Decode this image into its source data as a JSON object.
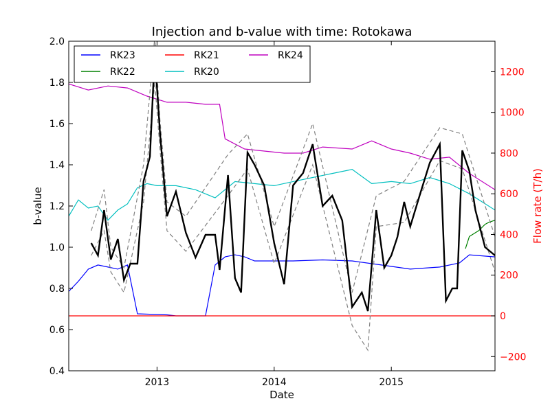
{
  "chart_data": {
    "type": "line",
    "title": "Injection and b-value with time: Rotokawa",
    "xlabel": "Date",
    "ylabel_left": "b-value",
    "ylabel_right": "Flow rate (T/h)",
    "xlim": [
      "2012-04-01",
      "2015-11-20"
    ],
    "ylim_left": [
      0.4,
      2.0
    ],
    "ylim_right": [
      -270,
      1350
    ],
    "x_ticks": [
      "2013-01-01",
      "2014-01-01",
      "2015-01-01"
    ],
    "x_tick_labels": [
      "2013",
      "2014",
      "2015"
    ],
    "y_left_ticks": [
      0.4,
      0.6,
      0.8,
      1.0,
      1.2,
      1.4,
      1.6,
      1.8,
      2.0
    ],
    "y_left_tick_labels": [
      "0.4",
      "0.6",
      "0.8",
      "1.0",
      "1.2",
      "1.4",
      "1.6",
      "1.8",
      "2.0"
    ],
    "y_right_ticks": [
      -200,
      0,
      200,
      400,
      600,
      800,
      1000,
      1200
    ],
    "y_right_tick_labels": [
      "−200",
      "0",
      "200",
      "400",
      "600",
      "800",
      "1000",
      "1200"
    ],
    "right_axis_color": "#ff0000",
    "legend": {
      "placement": "top-left",
      "columns": 3,
      "entries": [
        "RK23",
        "RK22",
        "RK21",
        "RK20",
        "RK24"
      ]
    },
    "flow_series": [
      {
        "name": "RK23",
        "color": "#0000ff",
        "axis": "right",
        "points": [
          [
            "2012-04-01",
            120
          ],
          [
            "2012-05-01",
            170
          ],
          [
            "2012-06-01",
            230
          ],
          [
            "2012-07-01",
            250
          ],
          [
            "2012-08-01",
            240
          ],
          [
            "2012-09-01",
            230
          ],
          [
            "2012-10-01",
            250
          ],
          [
            "2012-11-01",
            10
          ],
          [
            "2013-02-01",
            5
          ],
          [
            "2013-03-01",
            0
          ],
          [
            "2013-06-01",
            0
          ],
          [
            "2013-07-01",
            250
          ],
          [
            "2013-08-01",
            290
          ],
          [
            "2013-09-01",
            300
          ],
          [
            "2013-10-01",
            290
          ],
          [
            "2013-11-01",
            270
          ],
          [
            "2014-01-01",
            270
          ],
          [
            "2014-03-01",
            270
          ],
          [
            "2014-06-01",
            275
          ],
          [
            "2014-09-01",
            270
          ],
          [
            "2014-12-01",
            250
          ],
          [
            "2015-03-01",
            230
          ],
          [
            "2015-06-01",
            240
          ],
          [
            "2015-08-01",
            260
          ],
          [
            "2015-09-01",
            300
          ],
          [
            "2015-11-20",
            290
          ]
        ]
      },
      {
        "name": "RK22",
        "color": "#008000",
        "axis": "right",
        "points": [
          [
            "2015-08-20",
            330
          ],
          [
            "2015-09-01",
            390
          ],
          [
            "2015-10-01",
            420
          ],
          [
            "2015-10-20",
            450
          ],
          [
            "2015-11-01",
            460
          ],
          [
            "2015-11-20",
            470
          ]
        ]
      },
      {
        "name": "RK21",
        "color": "#ff0000",
        "axis": "right",
        "points": [
          [
            "2012-04-01",
            0
          ],
          [
            "2015-11-20",
            0
          ]
        ]
      },
      {
        "name": "RK20",
        "color": "#00bfbf",
        "axis": "right",
        "points": [
          [
            "2012-04-01",
            490
          ],
          [
            "2012-05-01",
            570
          ],
          [
            "2012-06-01",
            530
          ],
          [
            "2012-07-01",
            540
          ],
          [
            "2012-08-01",
            470
          ],
          [
            "2012-09-01",
            520
          ],
          [
            "2012-10-01",
            550
          ],
          [
            "2012-11-01",
            630
          ],
          [
            "2012-12-01",
            650
          ],
          [
            "2013-01-01",
            640
          ],
          [
            "2013-03-01",
            640
          ],
          [
            "2013-05-01",
            620
          ],
          [
            "2013-07-01",
            580
          ],
          [
            "2013-09-01",
            660
          ],
          [
            "2013-11-01",
            650
          ],
          [
            "2014-01-01",
            640
          ],
          [
            "2014-03-01",
            660
          ],
          [
            "2014-05-01",
            680
          ],
          [
            "2014-07-01",
            700
          ],
          [
            "2014-09-01",
            720
          ],
          [
            "2014-11-01",
            650
          ],
          [
            "2015-01-01",
            660
          ],
          [
            "2015-03-01",
            650
          ],
          [
            "2015-05-01",
            680
          ],
          [
            "2015-07-01",
            650
          ],
          [
            "2015-09-01",
            600
          ],
          [
            "2015-11-20",
            520
          ]
        ]
      },
      {
        "name": "RK24",
        "color": "#bf00bf",
        "axis": "right",
        "points": [
          [
            "2012-04-01",
            1140
          ],
          [
            "2012-06-01",
            1110
          ],
          [
            "2012-08-01",
            1130
          ],
          [
            "2012-10-01",
            1120
          ],
          [
            "2012-12-01",
            1080
          ],
          [
            "2013-02-01",
            1050
          ],
          [
            "2013-04-01",
            1050
          ],
          [
            "2013-06-01",
            1040
          ],
          [
            "2013-07-15",
            1040
          ],
          [
            "2013-08-01",
            870
          ],
          [
            "2013-10-01",
            820
          ],
          [
            "2013-12-01",
            810
          ],
          [
            "2014-02-01",
            800
          ],
          [
            "2014-04-01",
            800
          ],
          [
            "2014-06-01",
            830
          ],
          [
            "2014-09-01",
            820
          ],
          [
            "2014-11-01",
            860
          ],
          [
            "2015-01-01",
            820
          ],
          [
            "2015-03-01",
            800
          ],
          [
            "2015-05-01",
            770
          ],
          [
            "2015-07-01",
            780
          ],
          [
            "2015-09-01",
            700
          ],
          [
            "2015-11-20",
            620
          ]
        ]
      }
    ],
    "bvalue_series": {
      "color": "#000000",
      "axis": "left",
      "points": [
        [
          "2012-06-10",
          1.02
        ],
        [
          "2012-07-01",
          0.96
        ],
        [
          "2012-07-20",
          1.18
        ],
        [
          "2012-08-10",
          0.94
        ],
        [
          "2012-09-01",
          1.04
        ],
        [
          "2012-09-20",
          0.84
        ],
        [
          "2012-10-10",
          0.92
        ],
        [
          "2012-11-01",
          0.92
        ],
        [
          "2012-11-20",
          1.32
        ],
        [
          "2012-12-10",
          1.44
        ],
        [
          "2012-12-25",
          1.94
        ],
        [
          "2013-01-10",
          1.56
        ],
        [
          "2013-02-01",
          1.15
        ],
        [
          "2013-03-01",
          1.27
        ],
        [
          "2013-04-01",
          1.07
        ],
        [
          "2013-05-01",
          0.95
        ],
        [
          "2013-06-01",
          1.06
        ],
        [
          "2013-07-01",
          1.06
        ],
        [
          "2013-07-15",
          0.89
        ],
        [
          "2013-08-10",
          1.35
        ],
        [
          "2013-09-01",
          0.85
        ],
        [
          "2013-09-20",
          0.78
        ],
        [
          "2013-10-10",
          1.46
        ],
        [
          "2013-11-01",
          1.4
        ],
        [
          "2013-12-01",
          1.3
        ],
        [
          "2014-01-01",
          1.02
        ],
        [
          "2014-02-01",
          0.82
        ],
        [
          "2014-03-01",
          1.3
        ],
        [
          "2014-04-01",
          1.36
        ],
        [
          "2014-05-01",
          1.5
        ],
        [
          "2014-06-01",
          1.2
        ],
        [
          "2014-07-01",
          1.25
        ],
        [
          "2014-08-01",
          1.13
        ],
        [
          "2014-09-01",
          0.71
        ],
        [
          "2014-10-01",
          0.78
        ],
        [
          "2014-10-20",
          0.69
        ],
        [
          "2014-11-15",
          1.18
        ],
        [
          "2014-12-10",
          0.9
        ],
        [
          "2015-01-01",
          0.96
        ],
        [
          "2015-01-20",
          1.05
        ],
        [
          "2015-02-10",
          1.22
        ],
        [
          "2015-03-01",
          1.1
        ],
        [
          "2015-04-01",
          1.26
        ],
        [
          "2015-05-01",
          1.41
        ],
        [
          "2015-06-01",
          1.5
        ],
        [
          "2015-06-20",
          0.74
        ],
        [
          "2015-07-10",
          0.8
        ],
        [
          "2015-07-25",
          0.8
        ],
        [
          "2015-08-10",
          1.47
        ],
        [
          "2015-09-01",
          1.37
        ],
        [
          "2015-09-20",
          1.18
        ],
        [
          "2015-10-20",
          1.0
        ],
        [
          "2015-11-20",
          0.96
        ]
      ]
    },
    "bvalue_bounds": {
      "color": "#808080",
      "upper": [
        [
          "2012-06-10",
          1.08
        ],
        [
          "2012-07-20",
          1.28
        ],
        [
          "2012-08-10",
          1.0
        ],
        [
          "2012-09-20",
          0.9
        ],
        [
          "2012-11-20",
          1.4
        ],
        [
          "2012-12-25",
          2.02
        ],
        [
          "2013-01-10",
          1.62
        ],
        [
          "2013-02-01",
          1.22
        ],
        [
          "2013-04-01",
          1.15
        ],
        [
          "2013-08-10",
          1.45
        ],
        [
          "2013-10-10",
          1.55
        ],
        [
          "2014-01-01",
          1.1
        ],
        [
          "2014-05-01",
          1.6
        ],
        [
          "2014-09-01",
          0.78
        ],
        [
          "2014-11-15",
          1.25
        ],
        [
          "2015-02-10",
          1.32
        ],
        [
          "2015-06-01",
          1.58
        ],
        [
          "2015-08-10",
          1.55
        ],
        [
          "2015-11-20",
          1.05
        ]
      ],
      "lower": [
        [
          "2012-06-10",
          0.96
        ],
        [
          "2012-07-20",
          1.08
        ],
        [
          "2012-08-10",
          0.88
        ],
        [
          "2012-09-20",
          0.78
        ],
        [
          "2012-11-20",
          1.22
        ],
        [
          "2012-12-25",
          1.8
        ],
        [
          "2013-01-10",
          1.48
        ],
        [
          "2013-02-01",
          1.08
        ],
        [
          "2013-04-01",
          0.98
        ],
        [
          "2013-08-10",
          1.25
        ],
        [
          "2013-10-10",
          1.38
        ],
        [
          "2014-01-01",
          0.92
        ],
        [
          "2014-05-01",
          1.4
        ],
        [
          "2014-09-01",
          0.62
        ],
        [
          "2014-10-20",
          0.5
        ],
        [
          "2014-11-15",
          1.1
        ],
        [
          "2015-02-10",
          1.12
        ],
        [
          "2015-06-01",
          1.42
        ],
        [
          "2015-08-10",
          1.38
        ],
        [
          "2015-11-20",
          0.88
        ]
      ]
    }
  }
}
